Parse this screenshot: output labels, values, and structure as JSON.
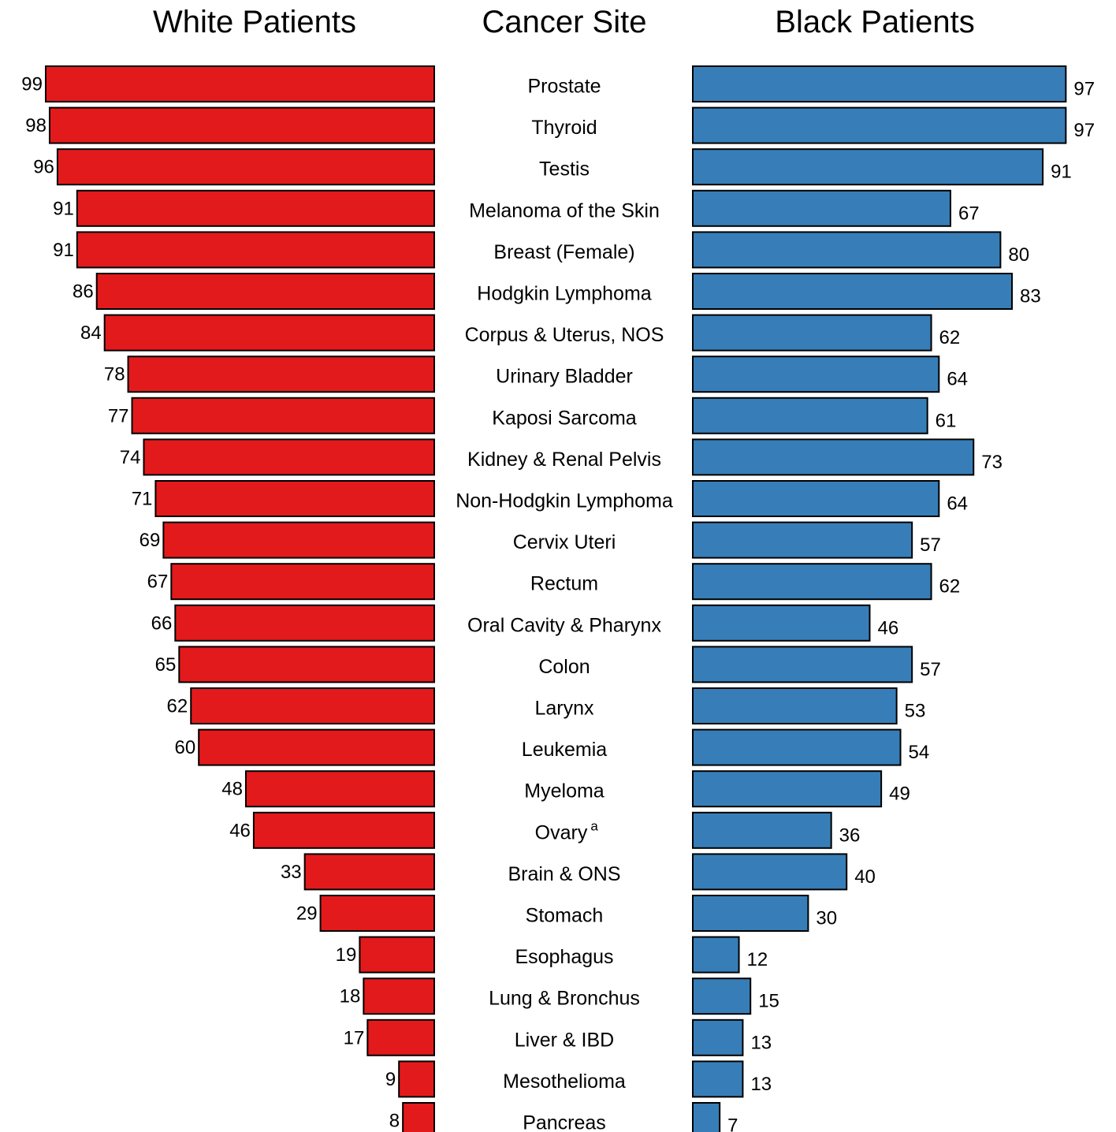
{
  "chart_data": {
    "type": "bar",
    "layout": "back-to-back horizontal bars",
    "headers": {
      "left": "White Patients",
      "center": "Cancer Site",
      "right": "Black Patients"
    },
    "colors": {
      "left": "#e31a1c",
      "right": "#377eb8",
      "stroke": "#000000"
    },
    "categories": [
      {
        "label": "Prostate",
        "sup": ""
      },
      {
        "label": "Thyroid",
        "sup": ""
      },
      {
        "label": "Testis",
        "sup": ""
      },
      {
        "label": "Melanoma of the Skin",
        "sup": ""
      },
      {
        "label": "Breast (Female)",
        "sup": ""
      },
      {
        "label": "Hodgkin Lymphoma",
        "sup": ""
      },
      {
        "label": "Corpus & Uterus, NOS",
        "sup": ""
      },
      {
        "label": "Urinary Bladder",
        "sup": ""
      },
      {
        "label": "Kaposi Sarcoma",
        "sup": ""
      },
      {
        "label": "Kidney & Renal Pelvis",
        "sup": ""
      },
      {
        "label": "Non-Hodgkin Lymphoma",
        "sup": ""
      },
      {
        "label": "Cervix Uteri",
        "sup": ""
      },
      {
        "label": "Rectum",
        "sup": ""
      },
      {
        "label": "Oral Cavity & Pharynx",
        "sup": ""
      },
      {
        "label": "Colon",
        "sup": ""
      },
      {
        "label": "Larynx",
        "sup": ""
      },
      {
        "label": "Leukemia",
        "sup": ""
      },
      {
        "label": "Myeloma",
        "sup": ""
      },
      {
        "label": "Ovary",
        "sup": "a"
      },
      {
        "label": "Brain & ONS",
        "sup": ""
      },
      {
        "label": "Stomach",
        "sup": ""
      },
      {
        "label": "Esophagus",
        "sup": ""
      },
      {
        "label": "Lung & Bronchus",
        "sup": ""
      },
      {
        "label": "Liver & IBD",
        "sup": ""
      },
      {
        "label": "Mesothelioma",
        "sup": ""
      },
      {
        "label": "Pancreas",
        "sup": ""
      }
    ],
    "series": [
      {
        "name": "White Patients",
        "side": "left",
        "values": [
          99,
          98,
          96,
          91,
          91,
          86,
          84,
          78,
          77,
          74,
          71,
          69,
          67,
          66,
          65,
          62,
          60,
          48,
          46,
          33,
          29,
          19,
          18,
          17,
          9,
          8
        ]
      },
      {
        "name": "Black Patients",
        "side": "right",
        "values": [
          97,
          97,
          91,
          67,
          80,
          83,
          62,
          64,
          61,
          73,
          64,
          57,
          62,
          46,
          57,
          53,
          54,
          49,
          36,
          40,
          30,
          12,
          15,
          13,
          13,
          7
        ]
      }
    ],
    "xlim": [
      0,
      100
    ],
    "grid": false,
    "legend": "none"
  }
}
